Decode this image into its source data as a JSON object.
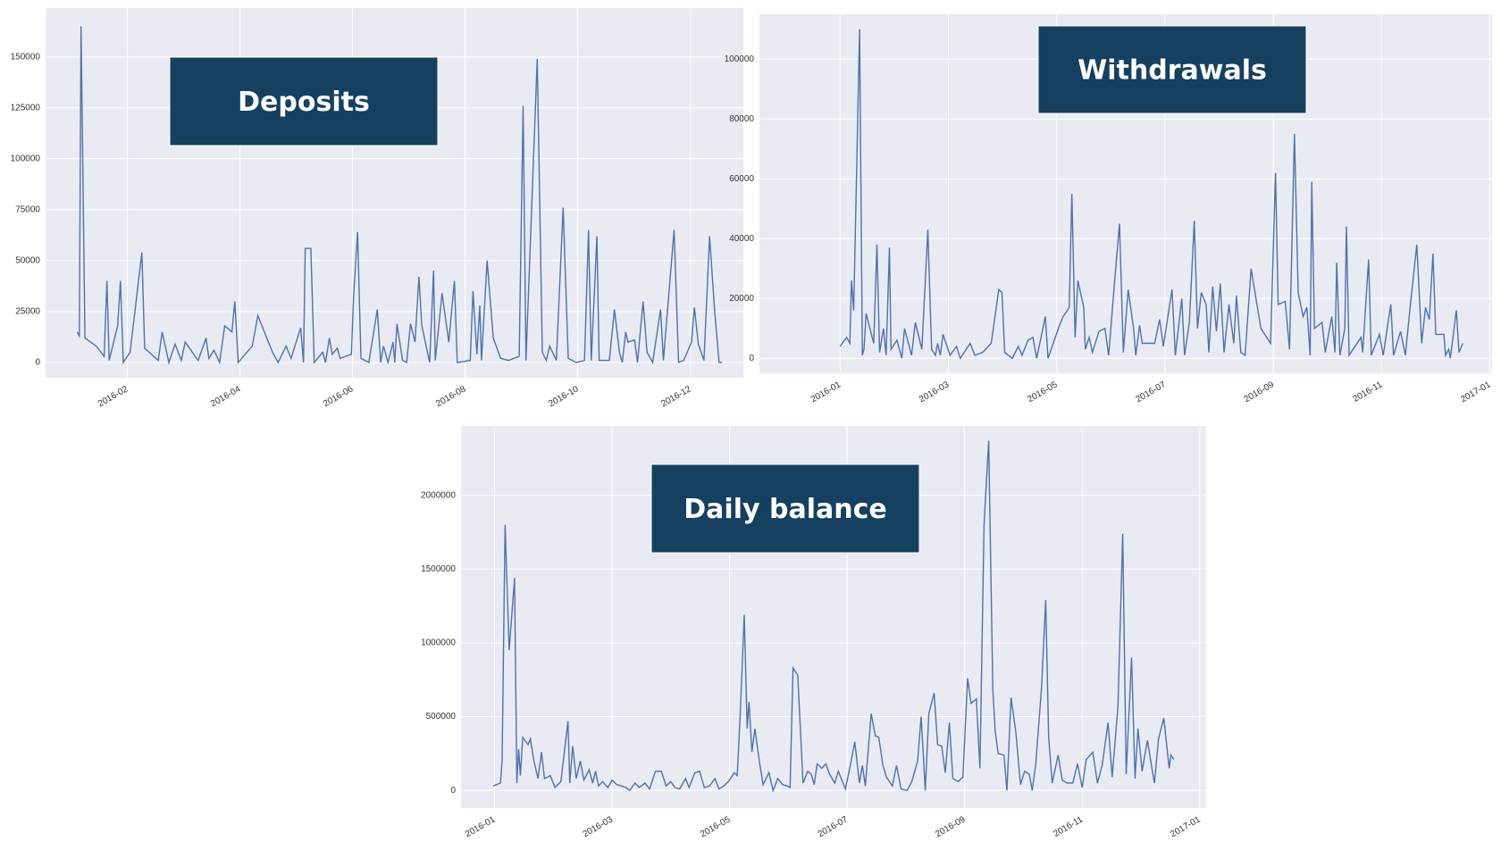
{
  "chart_data": [
    {
      "type": "line",
      "title": "Deposits",
      "x": [
        1.11,
        1.15,
        1.18,
        1.25,
        1.45,
        1.59,
        1.64,
        1.68,
        1.83,
        1.88,
        1.93,
        2.05,
        2.26,
        2.31,
        2.55,
        2.62,
        2.74,
        2.85,
        2.96,
        3.03,
        3.26,
        3.4,
        3.45,
        3.54,
        3.64,
        3.73,
        3.86,
        3.91,
        3.97,
        4.22,
        4.32,
        4.58,
        4.68,
        4.82,
        4.91,
        5.08,
        5.13,
        5.16,
        5.26,
        5.32,
        5.47,
        5.52,
        5.59,
        5.64,
        5.73,
        5.78,
        5.98,
        6.02,
        6.09,
        6.15,
        6.29,
        6.44,
        6.5,
        6.55,
        6.63,
        6.72,
        6.75,
        6.79,
        6.89,
        6.96,
        7.03,
        7.11,
        7.18,
        7.23,
        7.37,
        7.44,
        7.47,
        7.59,
        7.71,
        7.81,
        7.86,
        8.09,
        8.14,
        8.21,
        8.26,
        8.29,
        8.39,
        8.5,
        8.63,
        8.77,
        8.96,
        9.03,
        9.08,
        9.28,
        9.37,
        9.44,
        9.5,
        9.62,
        9.74,
        9.83,
        9.97,
        10.12,
        10.19,
        10.24,
        10.34,
        10.38,
        10.56,
        10.65,
        10.74,
        10.79,
        10.85,
        10.89,
        11.01,
        11.06,
        11.16,
        11.23,
        11.33,
        11.47,
        11.52,
        11.71,
        11.79,
        11.88,
        12.02,
        12.07,
        12.14,
        12.24,
        12.34,
        12.43,
        12.51,
        12.56
      ],
      "values": [
        15000,
        13000,
        165000,
        12000,
        8000,
        3000,
        40000,
        1000,
        18000,
        40000,
        0,
        5000,
        54000,
        7000,
        1000,
        15000,
        0,
        9000,
        1000,
        10000,
        1000,
        12000,
        2000,
        6000,
        0,
        18000,
        15000,
        30000,
        0,
        8000,
        23000,
        5000,
        0,
        8000,
        2000,
        17000,
        0,
        56000,
        56000,
        0,
        5000,
        0,
        12000,
        4000,
        7000,
        2000,
        4000,
        33000,
        64000,
        2000,
        0,
        26000,
        0,
        8000,
        0,
        10000,
        0,
        19000,
        1000,
        0,
        19000,
        10000,
        42000,
        18000,
        0,
        45000,
        1000,
        34000,
        10000,
        40000,
        0,
        1000,
        35000,
        4000,
        28000,
        1000,
        50000,
        12000,
        2000,
        1000,
        3000,
        126000,
        1000,
        149000,
        5000,
        1000,
        8000,
        1000,
        76000,
        2000,
        0,
        1000,
        65000,
        1000,
        62000,
        1000,
        1000,
        26000,
        5000,
        0,
        15000,
        10000,
        11000,
        0,
        30000,
        5000,
        0,
        26000,
        1000,
        65000,
        0,
        1000,
        10000,
        27000,
        9000,
        1000,
        62000,
        25000,
        0,
        0
      ],
      "color": "#4c72b0",
      "xlim": [
        0.55,
        12.94
      ],
      "ylim": [
        -7500,
        174000
      ],
      "xticks": [
        {
          "value": 2,
          "label": "2016-02"
        },
        {
          "value": 4,
          "label": "2016-04"
        },
        {
          "value": 6,
          "label": "2016-06"
        },
        {
          "value": 8,
          "label": "2016-08"
        },
        {
          "value": 10,
          "label": "2016-10"
        },
        {
          "value": 12,
          "label": "2016-12"
        }
      ],
      "yticks": [
        0,
        25000,
        50000,
        75000,
        100000,
        125000,
        150000
      ],
      "grid": true
    },
    {
      "type": "line",
      "title": "Withdrawals",
      "x": [
        1.0,
        1.12,
        1.18,
        1.21,
        1.25,
        1.36,
        1.41,
        1.44,
        1.48,
        1.62,
        1.68,
        1.73,
        1.8,
        1.85,
        1.91,
        1.94,
        2.05,
        2.14,
        2.19,
        2.32,
        2.39,
        2.51,
        2.62,
        2.69,
        2.76,
        2.8,
        2.85,
        2.9,
        3.03,
        3.15,
        3.22,
        3.4,
        3.49,
        3.63,
        3.79,
        3.93,
        3.99,
        4.04,
        4.18,
        4.29,
        4.36,
        4.47,
        4.56,
        4.63,
        4.79,
        4.84,
        5.05,
        5.12,
        5.23,
        5.28,
        5.34,
        5.39,
        5.5,
        5.53,
        5.6,
        5.66,
        5.78,
        5.89,
        5.96,
        6.07,
        6.16,
        6.23,
        6.32,
        6.42,
        6.46,
        6.53,
        6.58,
        6.81,
        6.9,
        6.97,
        7.13,
        7.19,
        7.31,
        7.36,
        7.45,
        7.54,
        7.6,
        7.67,
        7.76,
        7.81,
        7.88,
        7.95,
        8.02,
        8.09,
        8.18,
        8.27,
        8.32,
        8.4,
        8.48,
        8.59,
        8.77,
        8.95,
        9.04,
        9.09,
        9.22,
        9.3,
        9.39,
        9.46,
        9.55,
        9.62,
        9.68,
        9.71,
        9.76,
        9.9,
        9.96,
        10.08,
        10.14,
        10.17,
        10.23,
        10.32,
        10.35,
        10.4,
        10.62,
        10.65,
        10.76,
        10.81,
        10.96,
        11.03,
        11.12,
        11.17,
        11.22,
        11.35,
        11.44,
        11.52,
        11.65,
        11.74,
        11.81,
        11.88,
        11.95,
        12.0,
        12.15,
        12.18,
        12.24,
        12.27,
        12.38,
        12.43,
        12.5
      ],
      "values": [
        4000,
        7000,
        5000,
        26000,
        16000,
        110000,
        1000,
        3000,
        15000,
        5000,
        38000,
        2000,
        10000,
        1000,
        37000,
        3000,
        6000,
        0,
        10000,
        1000,
        12000,
        3000,
        43000,
        3000,
        1000,
        5000,
        1000,
        8000,
        1000,
        4000,
        0,
        5000,
        1000,
        2000,
        5000,
        23000,
        22000,
        2000,
        0,
        4000,
        1000,
        6000,
        7000,
        0,
        14000,
        0,
        11000,
        14000,
        17000,
        55000,
        7000,
        26000,
        17000,
        3000,
        7000,
        2000,
        9000,
        10000,
        1000,
        26000,
        45000,
        2000,
        23000,
        10000,
        1000,
        11000,
        5000,
        5000,
        13000,
        4000,
        23000,
        1000,
        20000,
        1000,
        12000,
        46000,
        10000,
        22000,
        18000,
        2000,
        24000,
        9000,
        25000,
        2000,
        18000,
        5000,
        21000,
        2000,
        1000,
        30000,
        10000,
        5000,
        62000,
        18000,
        19000,
        3000,
        75000,
        22000,
        14000,
        17000,
        1000,
        59000,
        10000,
        12000,
        2000,
        14000,
        2000,
        32000,
        1000,
        10000,
        44000,
        1000,
        7000,
        2000,
        33000,
        1000,
        8000,
        1000,
        12000,
        18000,
        1000,
        9000,
        1000,
        16000,
        38000,
        5000,
        17000,
        13000,
        35000,
        8000,
        8000,
        1000,
        3000,
        0,
        16000,
        2000,
        5000
      ],
      "color": "#4c72b0",
      "xlim": [
        -0.49,
        13.04
      ],
      "ylim": [
        -5000,
        115000
      ],
      "xticks": [
        {
          "value": 1,
          "label": "2016-01"
        },
        {
          "value": 3,
          "label": "2016-03"
        },
        {
          "value": 5,
          "label": "2016-05"
        },
        {
          "value": 7,
          "label": "2016-07"
        },
        {
          "value": 9,
          "label": "2016-09"
        },
        {
          "value": 11,
          "label": "2016-11"
        },
        {
          "value": 13,
          "label": "2017-01"
        }
      ],
      "yticks": [
        0,
        20000,
        40000,
        60000,
        80000,
        100000
      ],
      "grid": true
    },
    {
      "type": "line",
      "title": "Daily balance",
      "x": [
        0.98,
        1.1,
        1.13,
        1.18,
        1.25,
        1.34,
        1.38,
        1.41,
        1.44,
        1.48,
        1.57,
        1.61,
        1.67,
        1.74,
        1.8,
        1.85,
        1.95,
        2.03,
        2.13,
        2.25,
        2.28,
        2.33,
        2.39,
        2.46,
        2.52,
        2.61,
        2.67,
        2.72,
        2.77,
        2.84,
        2.93,
        3.0,
        3.08,
        3.16,
        3.23,
        3.3,
        3.39,
        3.46,
        3.56,
        3.64,
        3.74,
        3.84,
        3.92,
        4.0,
        4.07,
        4.15,
        4.25,
        4.31,
        4.41,
        4.49,
        4.57,
        4.66,
        4.75,
        4.82,
        4.9,
        4.98,
        5.08,
        5.13,
        5.18,
        5.25,
        5.3,
        5.33,
        5.38,
        5.43,
        5.51,
        5.57,
        5.67,
        5.74,
        5.82,
        5.9,
        5.98,
        6.03,
        6.08,
        6.16,
        6.25,
        6.33,
        6.39,
        6.44,
        6.49,
        6.57,
        6.64,
        6.7,
        6.79,
        6.85,
        6.97,
        7.07,
        7.13,
        7.21,
        7.26,
        7.31,
        7.41,
        7.48,
        7.54,
        7.61,
        7.67,
        7.77,
        7.84,
        7.92,
        8.02,
        8.1,
        8.2,
        8.26,
        8.33,
        8.39,
        8.48,
        8.54,
        8.61,
        8.67,
        8.74,
        8.8,
        8.89,
        8.97,
        9.05,
        9.11,
        9.2,
        9.26,
        9.33,
        9.41,
        9.48,
        9.52,
        9.57,
        9.67,
        9.72,
        9.79,
        9.87,
        9.95,
        10.02,
        10.1,
        10.15,
        10.21,
        10.31,
        10.38,
        10.43,
        10.49,
        10.59,
        10.66,
        10.74,
        10.84,
        10.92,
        11.0,
        11.07,
        11.18,
        11.26,
        11.34,
        11.44,
        11.51,
        11.61,
        11.69,
        11.75,
        11.84,
        11.9,
        11.95,
        12.02,
        12.11,
        12.2,
        12.23,
        12.3,
        12.39,
        12.48,
        12.51,
        12.56
      ],
      "values": [
        30000,
        50000,
        200000,
        1800000,
        950000,
        1440000,
        50000,
        280000,
        100000,
        360000,
        310000,
        350000,
        200000,
        80000,
        260000,
        80000,
        100000,
        20000,
        60000,
        470000,
        50000,
        300000,
        80000,
        200000,
        70000,
        140000,
        50000,
        130000,
        30000,
        60000,
        20000,
        70000,
        40000,
        30000,
        20000,
        0,
        50000,
        20000,
        50000,
        10000,
        130000,
        130000,
        30000,
        60000,
        20000,
        10000,
        80000,
        20000,
        120000,
        130000,
        20000,
        30000,
        80000,
        10000,
        30000,
        60000,
        120000,
        100000,
        500000,
        1190000,
        420000,
        600000,
        260000,
        420000,
        190000,
        40000,
        120000,
        0,
        80000,
        40000,
        30000,
        20000,
        830000,
        780000,
        50000,
        130000,
        110000,
        40000,
        180000,
        150000,
        180000,
        110000,
        50000,
        130000,
        10000,
        200000,
        330000,
        50000,
        170000,
        30000,
        520000,
        370000,
        360000,
        170000,
        90000,
        30000,
        170000,
        10000,
        0,
        60000,
        200000,
        500000,
        0,
        520000,
        660000,
        310000,
        300000,
        120000,
        460000,
        80000,
        60000,
        90000,
        760000,
        590000,
        620000,
        150000,
        1800000,
        2370000,
        690000,
        400000,
        250000,
        240000,
        0,
        630000,
        400000,
        40000,
        130000,
        110000,
        0,
        180000,
        700000,
        1290000,
        360000,
        50000,
        240000,
        70000,
        50000,
        50000,
        180000,
        20000,
        210000,
        260000,
        50000,
        170000,
        460000,
        90000,
        570000,
        1740000,
        110000,
        900000,
        80000,
        420000,
        130000,
        340000,
        120000,
        50000,
        350000,
        490000,
        150000,
        240000,
        210000
      ],
      "color": "#4c72b0",
      "xlim": [
        0.43,
        13.11
      ],
      "ylim": [
        -120000,
        2470000
      ],
      "xticks": [
        {
          "value": 1,
          "label": "2016-01"
        },
        {
          "value": 3,
          "label": "2016-03"
        },
        {
          "value": 5,
          "label": "2016-05"
        },
        {
          "value": 7,
          "label": "2016-07"
        },
        {
          "value": 9,
          "label": "2016-09"
        },
        {
          "value": 11,
          "label": "2016-11"
        },
        {
          "value": 13,
          "label": "2017-01"
        }
      ],
      "yticks": [
        0,
        500000,
        1000000,
        1500000,
        2000000
      ],
      "grid": true
    }
  ]
}
